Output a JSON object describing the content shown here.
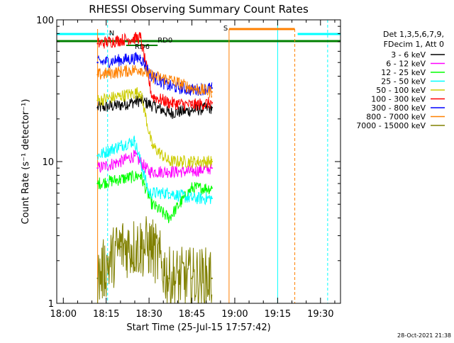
{
  "chart_data": {
    "type": "line",
    "title": "RHESSI Observing Summary Count Rates",
    "xlabel": "Start Time (25-Jul-15 17:57:42)",
    "ylabel": "Count Rate (s⁻¹ detector⁻¹)",
    "y_scale": "log",
    "ylim": [
      1,
      100
    ],
    "xlim": [
      "17:57:42",
      "19:37:00"
    ],
    "x_ticks": [
      "18:00",
      "18:15",
      "18:30",
      "18:45",
      "19:00",
      "19:15",
      "19:30"
    ],
    "y_ticks": [
      "1",
      "10",
      "100"
    ],
    "timestamp": "28-Oct-2021 21:38",
    "legend_header": [
      "Det 1,3,5,6,7,9,",
      "FDecim 1, Att 0"
    ],
    "legend_position": "right",
    "series": [
      {
        "name": "3 - 6 keV",
        "color": "#000000",
        "x": [
          "18:12",
          "18:20",
          "18:27",
          "18:33",
          "18:37",
          "18:45",
          "18:52"
        ],
        "values": [
          24,
          25,
          27,
          24,
          22,
          23,
          24
        ]
      },
      {
        "name": "6 - 12 keV",
        "color": "#ff00ff",
        "x": [
          "18:12",
          "18:20",
          "18:25",
          "18:30",
          "18:37",
          "18:45",
          "18:52"
        ],
        "values": [
          9,
          10,
          11,
          8.5,
          8.5,
          8.5,
          9
        ]
      },
      {
        "name": "12 - 25 keV",
        "color": "#00ff00",
        "x": [
          "18:12",
          "18:20",
          "18:27",
          "18:31",
          "18:37",
          "18:45",
          "18:52"
        ],
        "values": [
          7,
          7.5,
          8,
          5,
          4,
          6.5,
          6.5
        ]
      },
      {
        "name": "25 - 50 keV",
        "color": "#00ffff",
        "x": [
          "18:12",
          "18:20",
          "18:25",
          "18:30",
          "18:37",
          "18:45",
          "18:52"
        ],
        "values": [
          11,
          13,
          14,
          6,
          6,
          5.5,
          5.5
        ]
      },
      {
        "name": "50 - 100 keV",
        "color": "#cccc00",
        "x": [
          "18:12",
          "18:20",
          "18:27",
          "18:31",
          "18:37",
          "18:45",
          "18:52"
        ],
        "values": [
          27,
          29,
          31,
          13,
          10,
          10,
          10
        ]
      },
      {
        "name": "100 - 300 keV",
        "color": "#ff0000",
        "x": [
          "18:12",
          "18:20",
          "18:27",
          "18:31",
          "18:37",
          "18:45",
          "18:52"
        ],
        "values": [
          68,
          72,
          75,
          29,
          26,
          25,
          26
        ]
      },
      {
        "name": "300 - 800 keV",
        "color": "#0000ff",
        "x": [
          "18:12",
          "18:20",
          "18:27",
          "18:31",
          "18:37",
          "18:45",
          "18:52"
        ],
        "values": [
          50,
          52,
          54,
          40,
          34,
          32,
          33
        ]
      },
      {
        "name": "800 - 7000 keV",
        "color": "#ff8000",
        "x": [
          "18:12",
          "18:20",
          "18:27",
          "18:31",
          "18:37",
          "18:45",
          "18:52"
        ],
        "values": [
          41,
          43,
          45,
          40,
          38,
          33,
          31
        ]
      },
      {
        "name": "7000 - 15000 keV",
        "color": "#808000",
        "x": [
          "18:12",
          "18:20",
          "18:27",
          "18:31",
          "18:37",
          "18:45",
          "18:52"
        ],
        "values": [
          1.5,
          2.5,
          2.5,
          2.5,
          1.5,
          1.5,
          1.5
        ]
      }
    ],
    "annotations": [
      {
        "label": "N",
        "color": "#00ffff"
      },
      {
        "label": "RD6",
        "color": "#008000"
      },
      {
        "label": "RD0",
        "color": "#008000"
      },
      {
        "label": "S",
        "color": "#ff8000"
      }
    ]
  }
}
